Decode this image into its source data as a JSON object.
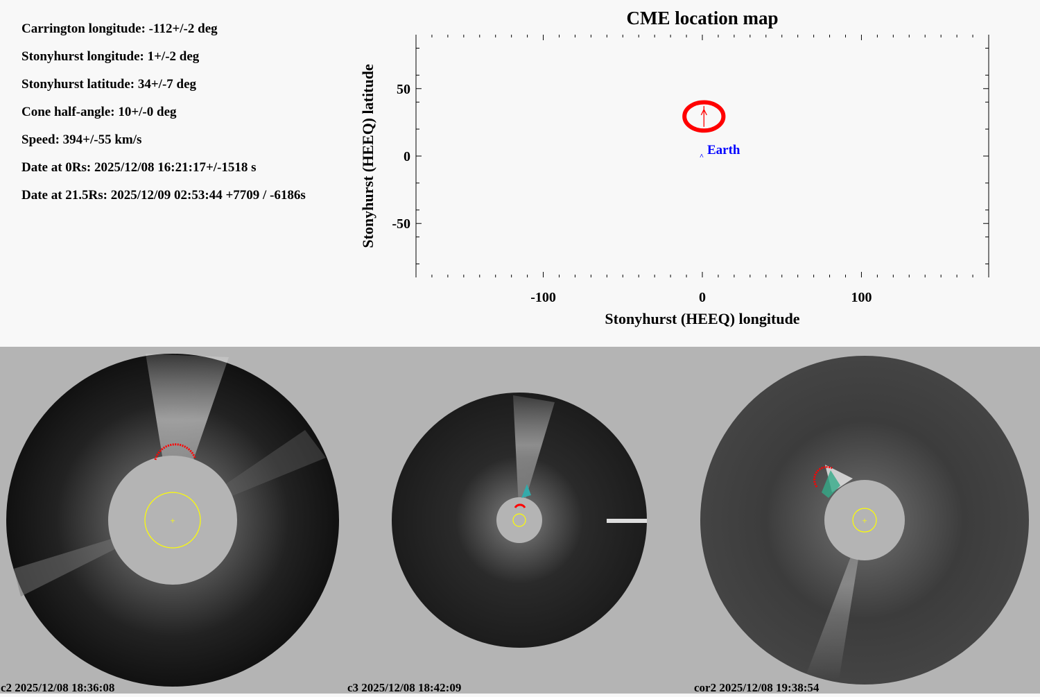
{
  "params": [
    "Carrington longitude: -112+/-2 deg",
    "Stonyhurst longitude: 1+/-2 deg",
    "Stonyhurst latitude: 34+/-7 deg",
    "Cone half-angle: 10+/-0 deg",
    "Speed: 394+/-55 km/s",
    "Date at 0Rs: 2025/12/08 16:21:17+/-1518 s",
    "Date at 21.5Rs: 2025/12/09 02:53:44 +7709 / -6186s"
  ],
  "chart_data": {
    "type": "scatter",
    "title": "CME location map",
    "xlabel": "Stonyhurst (HEEQ) longitude",
    "ylabel": "Stonyhurst (HEEQ) latitude",
    "xlim": [
      -180,
      180
    ],
    "ylim": [
      -90,
      90
    ],
    "xticks": [
      -100,
      0,
      100
    ],
    "yticks": [
      -50,
      0,
      50
    ],
    "grid": false,
    "cme": {
      "lon": 1,
      "lat": 34,
      "half_width_lon": 14,
      "half_width_lat": 11,
      "color": "#ff0000"
    },
    "earth": {
      "label": "Earth",
      "lon": 0,
      "lat": 0,
      "color": "#0000ff"
    }
  },
  "images": [
    {
      "caption": "c2 2025/12/08 18:36:08"
    },
    {
      "caption": "c3 2025/12/08 18:42:09"
    },
    {
      "caption": "cor2 2025/12/08 19:38:54"
    }
  ],
  "colors": {
    "background": "#f8f8f8",
    "panel": "#b4b4b4",
    "sun": "#ffff00",
    "fit": "#ff0000"
  }
}
